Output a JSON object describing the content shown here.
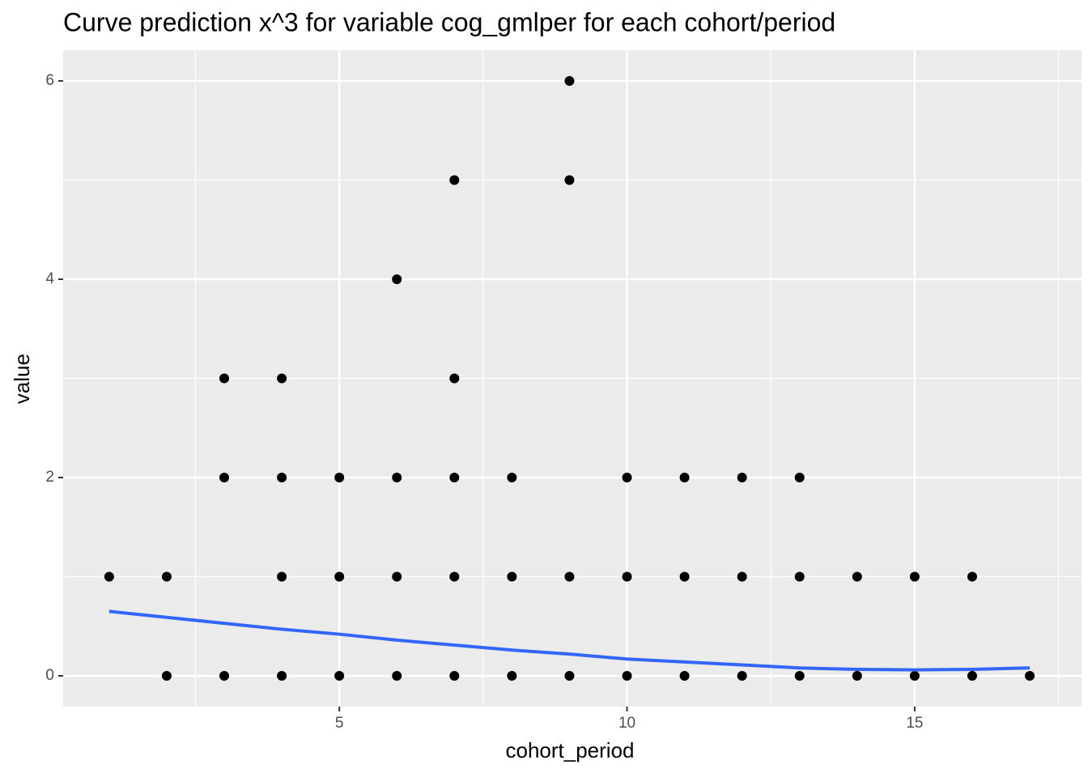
{
  "chart_data": {
    "type": "scatter",
    "title": "Curve prediction x^3  for variable cog_gmlper for each cohort/period",
    "x_label": "cohort_period",
    "y_label": "value",
    "xlim": [
      0.2,
      17.9
    ],
    "ylim": [
      -0.31,
      6.31
    ],
    "xticks": [
      5,
      10,
      15
    ],
    "yticks": [
      0,
      2,
      4,
      6
    ],
    "x_minor_grid": [
      2.5,
      7.5,
      12.5,
      17.5
    ],
    "y_minor_grid": [
      1,
      3,
      5
    ],
    "grid": true,
    "points": {
      "color": "#000000",
      "x": [
        1,
        2,
        2,
        3,
        3,
        3,
        4,
        4,
        4,
        4,
        5,
        5,
        5,
        6,
        6,
        6,
        6,
        7,
        7,
        7,
        7,
        7,
        8,
        8,
        8,
        9,
        9,
        9,
        9,
        10,
        10,
        10,
        11,
        11,
        11,
        12,
        12,
        12,
        13,
        13,
        13,
        14,
        14,
        15,
        15,
        16,
        16,
        17
      ],
      "y": [
        1,
        1,
        0,
        3,
        2,
        0,
        3,
        2,
        1,
        0,
        2,
        1,
        0,
        4,
        2,
        1,
        0,
        5,
        3,
        2,
        1,
        0,
        2,
        1,
        0,
        6,
        5,
        1,
        0,
        2,
        1,
        0,
        2,
        1,
        0,
        2,
        1,
        0,
        2,
        1,
        0,
        1,
        0,
        1,
        0,
        1,
        0,
        0
      ]
    },
    "curve": {
      "color": "#3366ff",
      "x": [
        1,
        2,
        3,
        4,
        5,
        6,
        7,
        8,
        9,
        10,
        11,
        12,
        13,
        14,
        15,
        16,
        17
      ],
      "y": [
        0.65,
        0.59,
        0.53,
        0.47,
        0.42,
        0.36,
        0.31,
        0.26,
        0.22,
        0.17,
        0.14,
        0.11,
        0.08,
        0.065,
        0.06,
        0.065,
        0.08
      ]
    }
  }
}
